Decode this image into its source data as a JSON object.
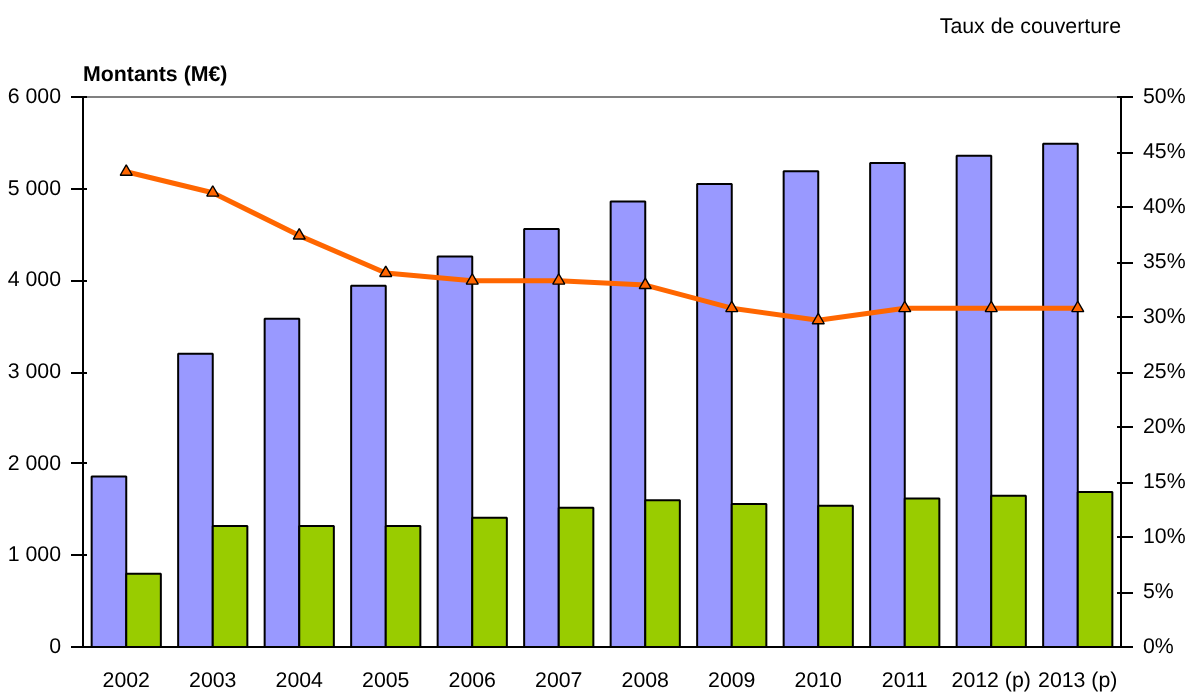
{
  "chart_data": {
    "type": "bar",
    "ylabel": "Montants (M€)",
    "y2label": "Taux de couverture",
    "categories": [
      "2002",
      "2003",
      "2004",
      "2005",
      "2006",
      "2007",
      "2008",
      "2009",
      "2010",
      "2011",
      "2012 (p)",
      "2013 (p)"
    ],
    "series": [
      {
        "color": "#9999ff",
        "values": [
          1860,
          3200,
          3580,
          3940,
          4260,
          4560,
          4860,
          5050,
          5190,
          5280,
          5360,
          5490
        ]
      },
      {
        "color": "#99cc00",
        "values": [
          800,
          1320,
          1320,
          1320,
          1410,
          1520,
          1600,
          1560,
          1540,
          1620,
          1650,
          1690
        ]
      },
      {
        "type": "line",
        "axis": "y2",
        "color": "#ff6600",
        "marker": "triangle",
        "values": [
          43.2,
          41.3,
          37.4,
          34.0,
          33.3,
          33.3,
          32.9,
          30.8,
          29.7,
          30.8,
          30.8,
          30.8
        ]
      }
    ],
    "ylim": [
      0,
      6000
    ],
    "yticks": [
      {
        "value": 0,
        "label": "0"
      },
      {
        "value": 1000,
        "label": "1 000"
      },
      {
        "value": 2000,
        "label": "2 000"
      },
      {
        "value": 3000,
        "label": "3 000"
      },
      {
        "value": 4000,
        "label": "4 000"
      },
      {
        "value": 5000,
        "label": "5 000"
      },
      {
        "value": 6000,
        "label": "6 000"
      }
    ],
    "y2lim": [
      0,
      50
    ],
    "y2ticks": [
      {
        "value": 0,
        "label": "0%"
      },
      {
        "value": 5,
        "label": "5%"
      },
      {
        "value": 10,
        "label": "10%"
      },
      {
        "value": 15,
        "label": "15%"
      },
      {
        "value": 20,
        "label": "20%"
      },
      {
        "value": 25,
        "label": "25%"
      },
      {
        "value": 30,
        "label": "30%"
      },
      {
        "value": 35,
        "label": "35%"
      },
      {
        "value": 40,
        "label": "40%"
      },
      {
        "value": 45,
        "label": "45%"
      },
      {
        "value": 50,
        "label": "50%"
      }
    ],
    "grid": false
  }
}
